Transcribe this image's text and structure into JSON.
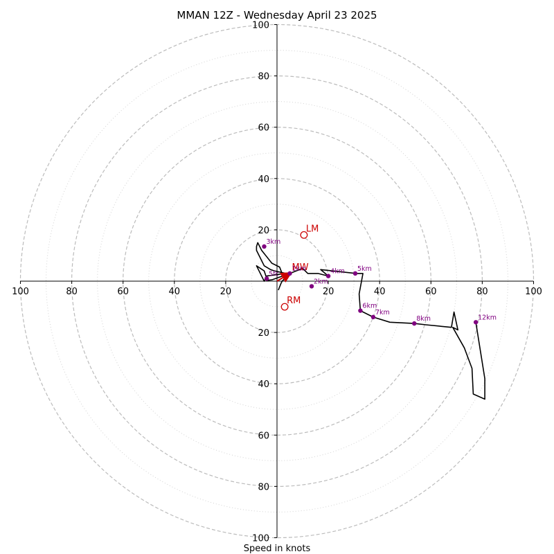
{
  "chart_data": {
    "type": "hodograph",
    "title": "MMAN 12Z - Wednesday April 23 2025",
    "xlabel": "Speed in knots",
    "units": "knots",
    "range": [
      -100,
      100
    ],
    "ring_major": [
      20,
      40,
      60,
      80,
      100
    ],
    "ring_minor": [
      10,
      30,
      50,
      70,
      90
    ],
    "tick_values": [
      20,
      40,
      60,
      80,
      100
    ],
    "colors": {
      "trace": "#000000",
      "height_marker": "#800080",
      "storm_motion": "#cc0000",
      "ring": "#bbbbbb",
      "axis": "#000000"
    },
    "wind_trace": [
      [
        0.5,
        -3.5
      ],
      [
        1.5,
        -1
      ],
      [
        2,
        0
      ],
      [
        3,
        1
      ],
      [
        5,
        2.5
      ],
      [
        3.5,
        3
      ],
      [
        -1,
        4
      ],
      [
        -2.5,
        4.5
      ],
      [
        -5,
        6
      ],
      [
        -8,
        12
      ],
      [
        -8,
        13.5
      ],
      [
        -7.5,
        15
      ],
      [
        -6,
        12
      ],
      [
        -2,
        7
      ],
      [
        1,
        5.5
      ],
      [
        2,
        3
      ],
      [
        3,
        3
      ],
      [
        -4,
        2
      ],
      [
        -5,
        0
      ],
      [
        -8,
        6
      ],
      [
        -5,
        4
      ],
      [
        -4,
        1
      ],
      [
        -4,
        0.3
      ],
      [
        -2,
        0.5
      ],
      [
        5,
        3
      ],
      [
        10,
        5
      ],
      [
        12,
        3
      ],
      [
        16,
        3
      ],
      [
        20,
        2
      ],
      [
        17,
        4.5
      ],
      [
        31,
        3
      ],
      [
        33.5,
        3
      ],
      [
        32,
        -5
      ],
      [
        32.5,
        -11.5
      ],
      [
        37.5,
        -14
      ],
      [
        44,
        -16
      ],
      [
        53.5,
        -16.5
      ],
      [
        58,
        -17
      ],
      [
        68,
        -18
      ],
      [
        69,
        -12
      ],
      [
        70.5,
        -19
      ],
      [
        68.5,
        -18
      ],
      [
        73,
        -26
      ],
      [
        76,
        -34
      ],
      [
        76.5,
        -44
      ],
      [
        81,
        -46
      ],
      [
        81,
        -38
      ],
      [
        77.5,
        -16
      ]
    ],
    "height_markers": [
      {
        "label": "5fc",
        "u": -4,
        "v": 1
      },
      {
        "label": "1km",
        "u": 5,
        "v": 3
      },
      {
        "label": "2km",
        "u": 13.5,
        "v": -2
      },
      {
        "label": "3km",
        "u": -5,
        "v": 13.5
      },
      {
        "label": "4km",
        "u": 20,
        "v": 2
      },
      {
        "label": "5km",
        "u": 30.5,
        "v": 3
      },
      {
        "label": "6km",
        "u": 32.5,
        "v": -11.5
      },
      {
        "label": "7km",
        "u": 37.5,
        "v": -14
      },
      {
        "label": "8km",
        "u": 53.5,
        "v": -16.5
      },
      {
        "label": "12km",
        "u": 77.5,
        "v": -16
      }
    ],
    "storm_motion": [
      {
        "label": "LM",
        "u": 10.5,
        "v": 18
      },
      {
        "label": "MW",
        "u": 5,
        "v": 3
      },
      {
        "label": "RM",
        "u": 3,
        "v": -10
      }
    ],
    "mean_wind_arrow": {
      "from": [
        0,
        0
      ],
      "to": [
        5,
        3
      ]
    }
  }
}
